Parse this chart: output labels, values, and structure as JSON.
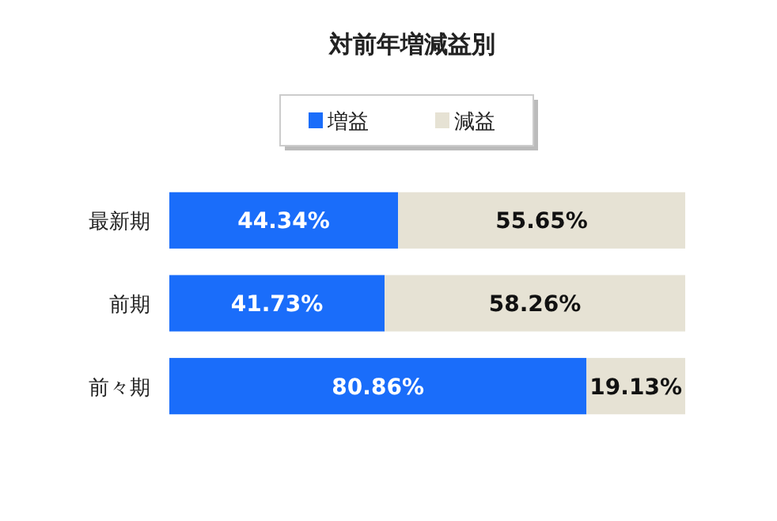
{
  "chart_data": {
    "type": "bar",
    "orientation": "horizontal",
    "stacked": true,
    "title": "対前年増減益別",
    "legend": "top",
    "categories": [
      "最新期",
      "前期",
      "前々期"
    ],
    "series": [
      {
        "name": "増益",
        "color": "#1a6dfa",
        "values": [
          44.34,
          41.73,
          80.86
        ],
        "value_labels": [
          "44.34%",
          "41.73%",
          "80.86%"
        ]
      },
      {
        "name": "減益",
        "color": "#e6e2d4",
        "values": [
          55.65,
          58.26,
          19.13
        ],
        "value_labels": [
          "55.65%",
          "58.26%",
          "19.13%"
        ]
      }
    ]
  }
}
